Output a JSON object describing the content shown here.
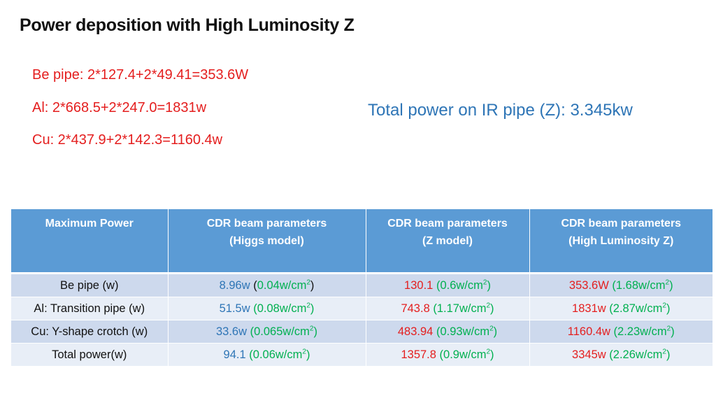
{
  "title": "Power deposition with High Luminosity Z",
  "formulas": [
    "Be pipe: 2*127.4+2*49.41=353.6W",
    "Al: 2*668.5+2*247.0=1831w",
    "Cu: 2*437.9+2*142.3=1160.4w"
  ],
  "total_power": "Total power on IR pipe (Z): 3.345kw",
  "colors": {
    "header_bg": "#5b9bd5",
    "row_dark": "#cdd9ed",
    "row_light": "#e8eef7",
    "blue": "#2e75b6",
    "red": "#e41e1e",
    "green": "#00b050"
  },
  "table": {
    "headers": [
      {
        "line1": "Maximum Power",
        "line2": ""
      },
      {
        "line1": "CDR  beam parameters",
        "line2": "(Higgs model)"
      },
      {
        "line1": "CDR  beam parameters",
        "line2": "(Z model)"
      },
      {
        "line1": "CDR  beam parameters",
        "line2": "(High Luminosity Z)"
      }
    ],
    "unit_prefix": "w/cm",
    "unit_exp": "2",
    "rows": [
      {
        "label": "Be pipe (w)",
        "higgs": {
          "value": "8.96w",
          "density": "0.04"
        },
        "z": {
          "value": "130.1",
          "density": "0.6"
        },
        "hlz": {
          "value": "353.6W",
          "density": "1.68"
        }
      },
      {
        "label": "Al: Transition pipe (w)",
        "higgs": {
          "value": "51.5w",
          "density": "0.08"
        },
        "z": {
          "value": "743.8",
          "density": "1.17"
        },
        "hlz": {
          "value": "1831w",
          "density": "2.87"
        }
      },
      {
        "label": "Cu: Y-shape crotch (w)",
        "higgs": {
          "value": "33.6w",
          "density": "0.065"
        },
        "z": {
          "value": "483.94",
          "density": "0.93"
        },
        "hlz": {
          "value": "1160.4w",
          "density": "2.23"
        }
      },
      {
        "label": "Total power(w)",
        "higgs": {
          "value": "94.1",
          "density": "0.06"
        },
        "z": {
          "value": "1357.8",
          "density": "0.9"
        },
        "hlz": {
          "value": "3345w",
          "density": "2.26"
        }
      }
    ]
  }
}
